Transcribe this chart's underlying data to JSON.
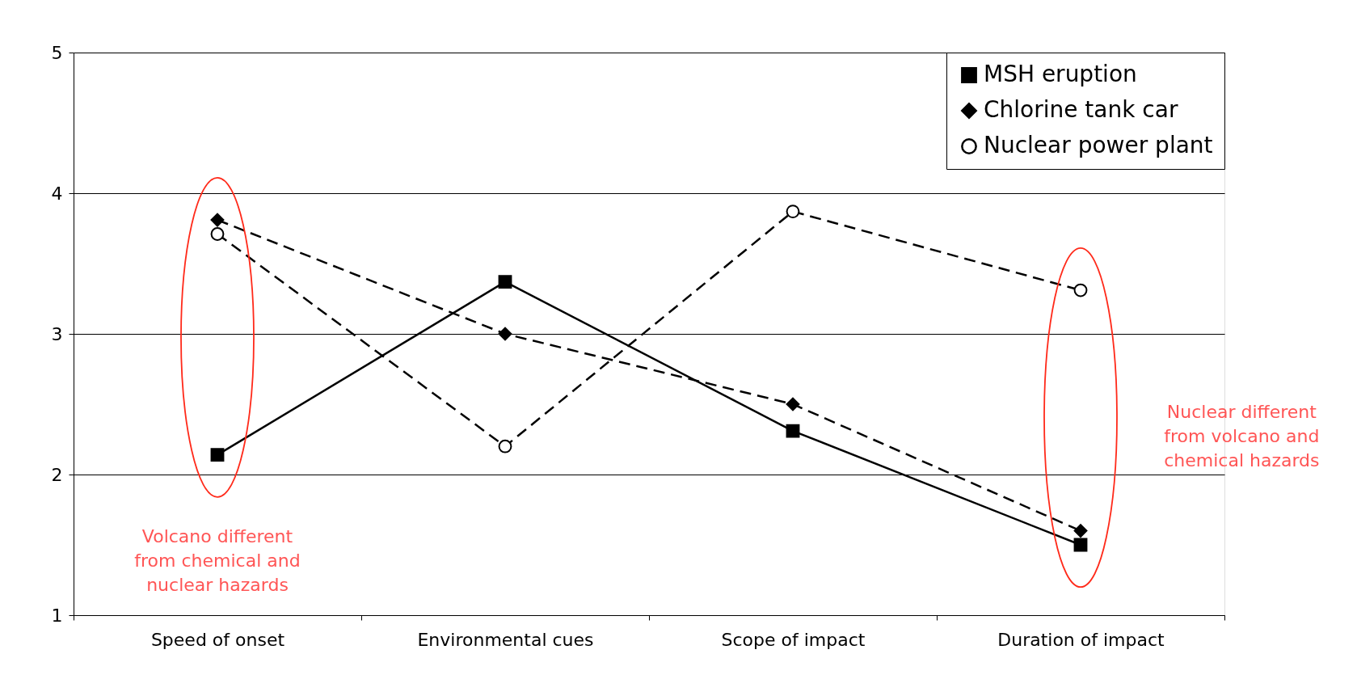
{
  "chart_data": {
    "type": "line",
    "categories": [
      "Speed of onset",
      "Environmental  cues",
      "Scope of impact",
      "Duration of impact"
    ],
    "series": [
      {
        "name": "MSH eruption",
        "color": "#000000",
        "marker": "square",
        "line_style": "solid",
        "values": [
          2.14,
          3.37,
          2.31,
          1.5
        ]
      },
      {
        "name": "Chlorine tank car",
        "color": "#000000",
        "marker": "diamond",
        "line_style": "dashed",
        "values": [
          3.81,
          3.0,
          2.5,
          1.6
        ]
      },
      {
        "name": "Nuclear power plant",
        "color": "#000000",
        "marker": "circle",
        "line_style": "dashed",
        "values": [
          3.71,
          2.2,
          3.87,
          3.31
        ]
      }
    ],
    "ylim": [
      1,
      5
    ],
    "yticks": [
      1,
      2,
      3,
      4,
      5
    ],
    "grid": "y",
    "legend": "top right",
    "annotations": [
      "Volcano different\nfrom chemical and\nnuclear hazards",
      "Nuclear different\nfrom volcano and\nchemical hazards"
    ]
  }
}
